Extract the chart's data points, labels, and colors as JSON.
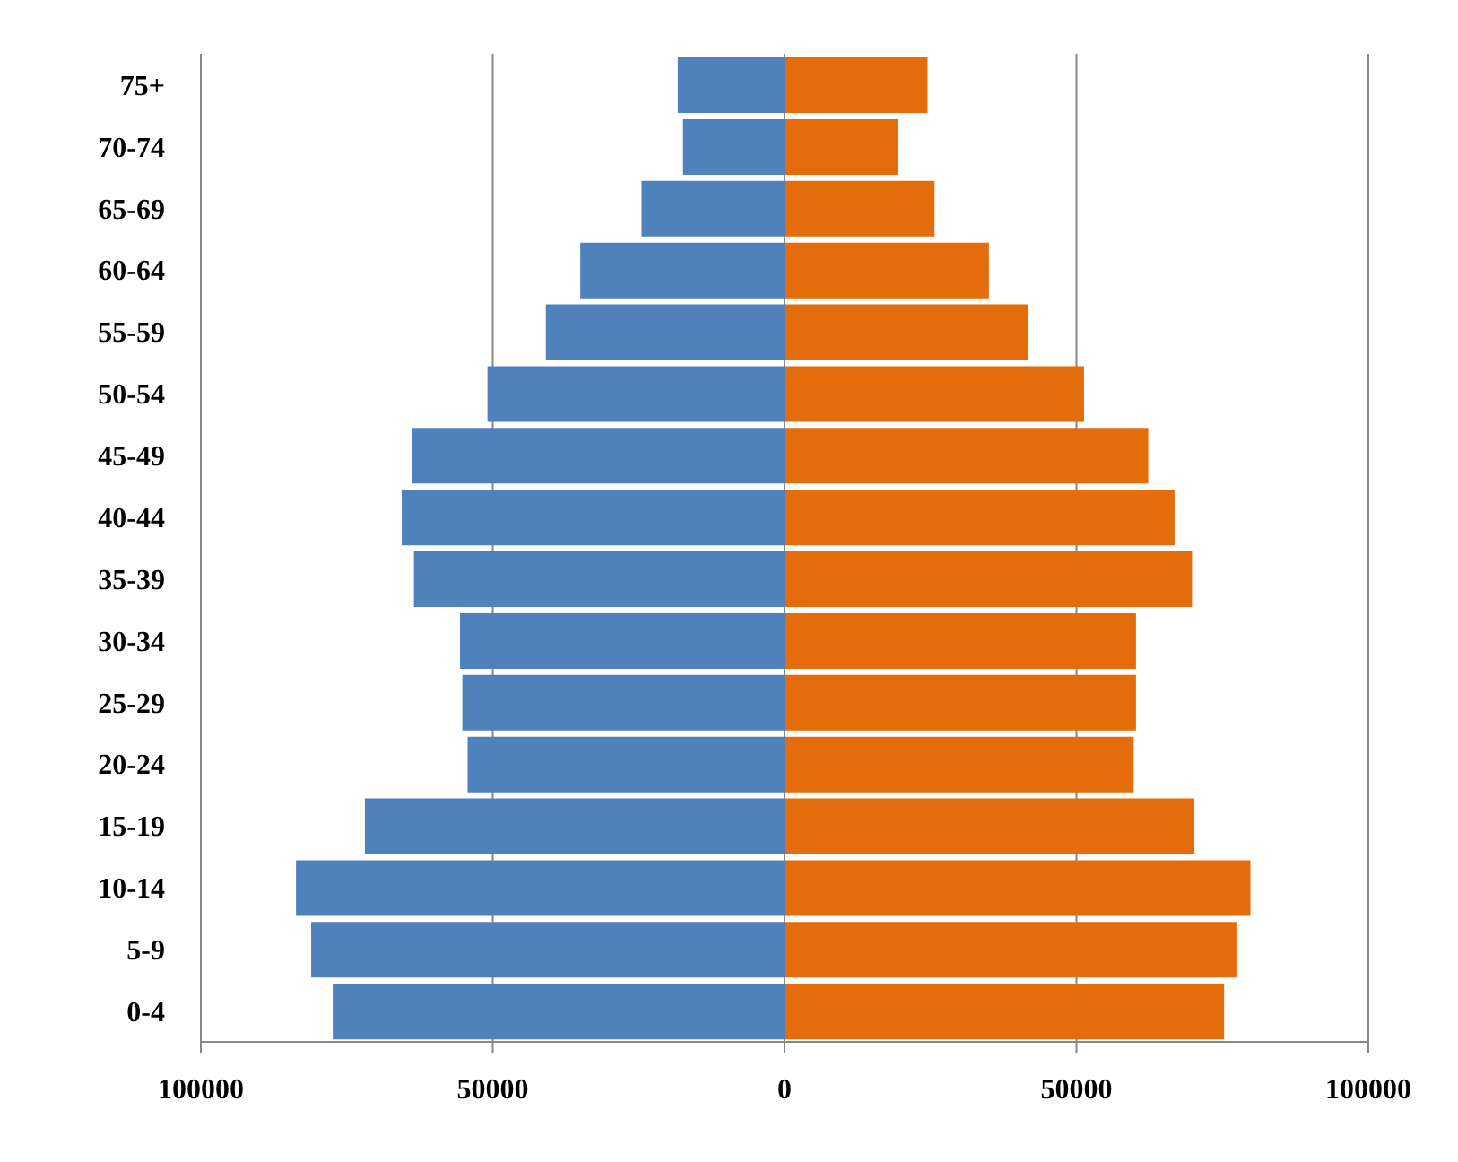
{
  "chart_data": {
    "type": "bar",
    "orientation": "horizontal",
    "stacked": true,
    "categories": [
      "75+",
      "70-74",
      "65-69",
      "60-64",
      "55-59",
      "50-54",
      "45-49",
      "40-44",
      "35-39",
      "30-34",
      "25-29",
      "20-24",
      "15-19",
      "10-14",
      "5-9",
      "0-4"
    ],
    "series": [
      {
        "color": "#4f81bd",
        "values": [
          -18300,
          -17400,
          -24500,
          -35000,
          -40900,
          -50900,
          -63900,
          -65600,
          -63500,
          -55600,
          -55200,
          -54300,
          -71900,
          -83700,
          -81100,
          -77400
        ]
      },
      {
        "color": "#e46c0a",
        "values": [
          24500,
          19500,
          25700,
          35000,
          41700,
          51300,
          62300,
          66800,
          69800,
          60200,
          60200,
          59800,
          70200,
          79800,
          77400,
          75300
        ]
      }
    ],
    "xlim": [
      -100000,
      100000
    ],
    "xticks": [
      {
        "value": -100000,
        "label": "100000"
      },
      {
        "value": -50000,
        "label": "50000"
      },
      0,
      50000,
      100000
    ],
    "grid": "x"
  }
}
